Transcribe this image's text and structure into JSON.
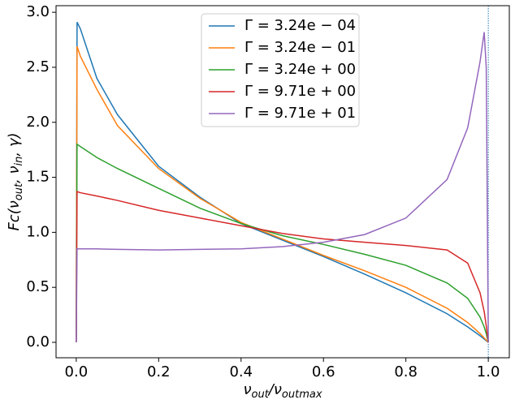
{
  "chart_data": {
    "type": "line",
    "xlabel": [
      "ν",
      "out",
      "/ν",
      "outmax"
    ],
    "ylabel": [
      "Fc(ν",
      "out",
      ", ν",
      "in",
      ", γ)"
    ],
    "x": [
      0,
      0.002,
      0.01,
      0.05,
      0.1,
      0.2,
      0.3,
      0.4,
      0.5,
      0.6,
      0.7,
      0.8,
      0.9,
      0.95,
      0.98,
      0.99,
      0.995,
      1.0
    ],
    "series": [
      {
        "name": "Γ = 3.24e − 04",
        "color": "#1f77b4",
        "values": [
          0,
          2.91,
          2.85,
          2.4,
          2.07,
          1.6,
          1.32,
          1.08,
          0.93,
          0.78,
          0.62,
          0.45,
          0.26,
          0.14,
          0.06,
          0.03,
          0.015,
          0
        ]
      },
      {
        "name": "Γ = 3.24e − 01",
        "color": "#ff7f0e",
        "values": [
          0,
          2.69,
          2.6,
          2.3,
          1.97,
          1.58,
          1.31,
          1.09,
          0.94,
          0.79,
          0.65,
          0.5,
          0.31,
          0.18,
          0.08,
          0.04,
          0.02,
          0
        ]
      },
      {
        "name": "Γ = 3.24e + 00",
        "color": "#2ca02c",
        "values": [
          0,
          1.8,
          1.78,
          1.68,
          1.58,
          1.4,
          1.22,
          1.08,
          0.97,
          0.89,
          0.8,
          0.7,
          0.54,
          0.4,
          0.23,
          0.14,
          0.08,
          0
        ]
      },
      {
        "name": "Γ = 9.71e + 00",
        "color": "#d62728",
        "values": [
          0,
          1.37,
          1.36,
          1.33,
          1.29,
          1.2,
          1.13,
          1.06,
          0.99,
          0.94,
          0.91,
          0.88,
          0.84,
          0.72,
          0.45,
          0.28,
          0.15,
          0
        ]
      },
      {
        "name": "Γ = 9.71e + 01",
        "color": "#9467bd",
        "values": [
          0,
          0.85,
          0.85,
          0.85,
          0.845,
          0.84,
          0.845,
          0.85,
          0.87,
          0.91,
          0.98,
          1.13,
          1.48,
          1.95,
          2.55,
          2.82,
          2.5,
          0
        ]
      }
    ],
    "xlim": [
      -0.049,
      1.051
    ],
    "ylim": [
      -0.14,
      3.06
    ],
    "xticks": [
      {
        "value": 0,
        "label": "0.0"
      },
      {
        "value": 0.2,
        "label": "0.2"
      },
      {
        "value": 0.4,
        "label": "0.4"
      },
      {
        "value": 0.6,
        "label": "0.6"
      },
      {
        "value": 0.8,
        "label": "0.8"
      },
      {
        "value": 1,
        "label": "1.0"
      }
    ],
    "yticks": [
      {
        "value": 0,
        "label": "0.0"
      },
      {
        "value": 0.5,
        "label": "0.5"
      },
      {
        "value": 1,
        "label": "1.0"
      },
      {
        "value": 1.5,
        "label": "1.5"
      },
      {
        "value": 2,
        "label": "2.0"
      },
      {
        "value": 2.5,
        "label": "2.5"
      },
      {
        "value": 3,
        "label": "3.0"
      }
    ],
    "vline": 1,
    "legend": "upper center"
  }
}
